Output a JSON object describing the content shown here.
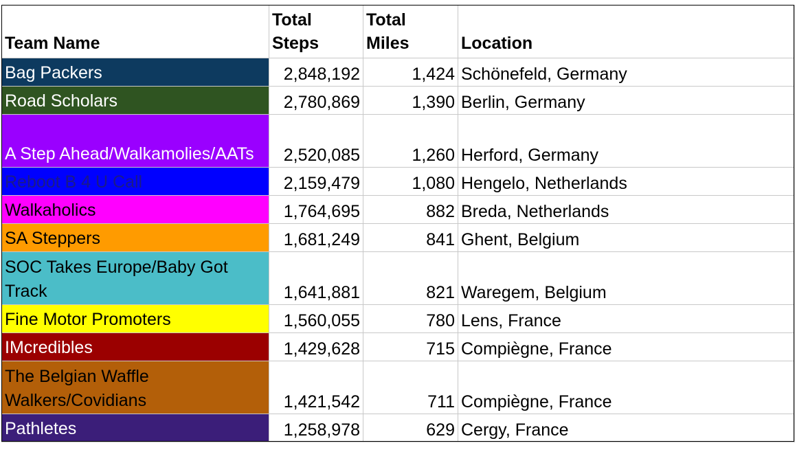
{
  "headers": {
    "team_name": "Team Name",
    "total_steps_line1": "Total",
    "total_steps_line2": "Steps",
    "total_miles_line1": "Total",
    "total_miles_line2": "Miles",
    "location": "Location"
  },
  "rows": [
    {
      "team": "Bag Packers",
      "steps": "2,848,192",
      "miles": "1,424",
      "location": "Schönefeld,  Germany",
      "bg": "#0d3a5f",
      "fg": "#ffffff"
    },
    {
      "team": "Road Scholars",
      "steps": "2,780,869",
      "miles": "1,390",
      "location": "Berlin, Germany",
      "bg": "#2f5421",
      "fg": "#ffffff"
    },
    {
      "team": "A Step Ahead/Walkamolies/AATs",
      "steps": "2,520,085",
      "miles": "1,260",
      "location": "Herford, Germany",
      "bg": "#9a00ff",
      "fg": "#ffffff"
    },
    {
      "team": "Reboot B 4 U Call",
      "steps": "2,159,479",
      "miles": "1,080",
      "location": "Hengelo, Netherlands",
      "bg": "#0000ff",
      "fg": "#1a1a8a"
    },
    {
      "team": "Walkaholics",
      "steps": "1,764,695",
      "miles": "882",
      "location": "Breda, Netherlands",
      "bg": "#ff00ff",
      "fg": "#000000"
    },
    {
      "team": "SA Steppers",
      "steps": "1,681,249",
      "miles": "841",
      "location": "Ghent, Belgium",
      "bg": "#ff9b00",
      "fg": "#000000"
    },
    {
      "team": "SOC Takes Europe/Baby Got Track",
      "steps": "1,641,881",
      "miles": "821",
      "location": "Waregem, Belgium",
      "bg": "#4bbdc8",
      "fg": "#000000"
    },
    {
      "team": "Fine Motor Promoters",
      "steps": "1,560,055",
      "miles": "780",
      "location": "Lens, France",
      "bg": "#ffff00",
      "fg": "#000000"
    },
    {
      "team": "IMcredibles",
      "steps": "1,429,628",
      "miles": "715",
      "location": "Compiègne, France",
      "bg": "#9b0000",
      "fg": "#ffffff"
    },
    {
      "team": "The Belgian Waffle Walkers/Covidians",
      "steps": "1,421,542",
      "miles": "711",
      "location": "Compiègne, France",
      "bg": "#b35f09",
      "fg": "#000000"
    },
    {
      "team": "Pathletes",
      "steps": "1,258,978",
      "miles": "629",
      "location": "Cergy, France",
      "bg": "#3b1e79",
      "fg": "#ffffff"
    }
  ]
}
